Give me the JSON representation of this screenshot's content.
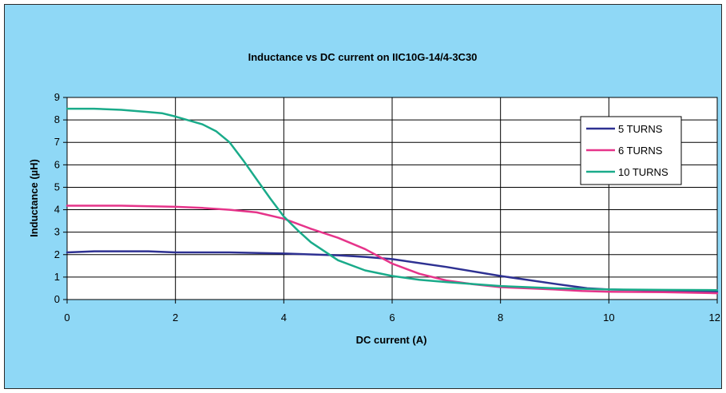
{
  "chart_data": {
    "type": "line",
    "title": "Inductance vs DC current on IIC10G-14/4-3C30",
    "xlabel": "DC current (A)",
    "ylabel": "Inductance (µH)",
    "xlim": [
      0,
      12
    ],
    "ylim": [
      0,
      9
    ],
    "x_ticks": [
      "0",
      "2",
      "4",
      "6",
      "8",
      "10",
      "12"
    ],
    "y_ticks": [
      "0",
      "1",
      "2",
      "3",
      "4",
      "5",
      "6",
      "7",
      "8",
      "9"
    ],
    "grid": true,
    "legend_position": "top-right",
    "series": [
      {
        "name": "5 TURNS",
        "color": "#2e3192",
        "x": [
          0,
          0.5,
          1,
          1.5,
          2,
          3,
          4,
          5,
          5.5,
          6,
          7,
          8,
          9,
          9.3,
          9.6,
          10,
          11,
          12
        ],
        "y": [
          2.1,
          2.15,
          2.15,
          2.15,
          2.1,
          2.1,
          2.05,
          1.97,
          1.9,
          1.8,
          1.45,
          1.05,
          0.7,
          0.6,
          0.5,
          0.45,
          0.4,
          0.35
        ]
      },
      {
        "name": "6 TURNS",
        "color": "#e6348a",
        "x": [
          0,
          1,
          2,
          2.5,
          3,
          3.5,
          4,
          4.5,
          5,
          5.5,
          6,
          6.5,
          7,
          7.5,
          8,
          9,
          9.5,
          10,
          11,
          12
        ],
        "y": [
          4.18,
          4.18,
          4.13,
          4.08,
          4.0,
          3.88,
          3.6,
          3.15,
          2.75,
          2.25,
          1.6,
          1.15,
          0.85,
          0.68,
          0.55,
          0.45,
          0.38,
          0.35,
          0.33,
          0.28
        ]
      },
      {
        "name": "10 TURNS",
        "color": "#1aab8a",
        "x": [
          0,
          0.5,
          1,
          1.5,
          1.75,
          2,
          2.5,
          2.75,
          3,
          3.25,
          3.5,
          3.75,
          4,
          4.25,
          4.5,
          5,
          5.5,
          6,
          6.5,
          7,
          8,
          9,
          10,
          11,
          12
        ],
        "y": [
          8.5,
          8.5,
          8.45,
          8.35,
          8.3,
          8.15,
          7.8,
          7.5,
          7.0,
          6.2,
          5.35,
          4.5,
          3.7,
          3.1,
          2.55,
          1.75,
          1.3,
          1.05,
          0.88,
          0.78,
          0.6,
          0.5,
          0.45,
          0.43,
          0.42
        ]
      }
    ]
  }
}
